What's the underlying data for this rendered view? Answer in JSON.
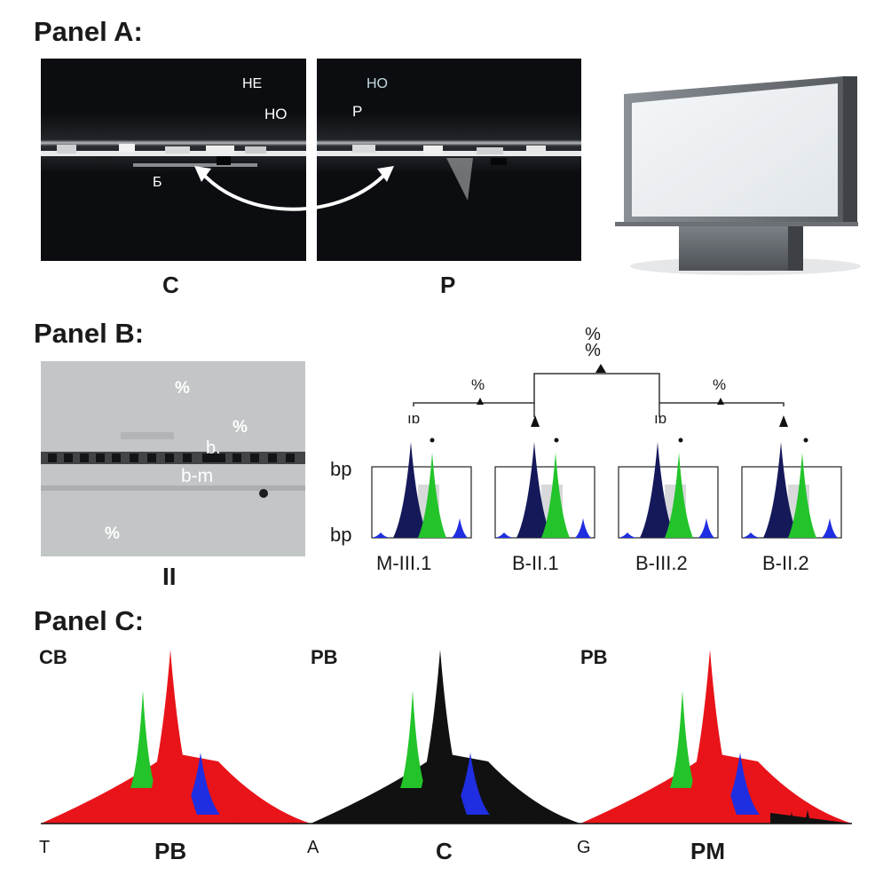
{
  "panel_a": {
    "title": "Panel A:",
    "left_image": {
      "labels": [
        "HE",
        "HO",
        "Б"
      ],
      "caption": "C"
    },
    "right_image": {
      "labels": [
        "HO",
        "P"
      ],
      "caption": "P"
    }
  },
  "panel_b": {
    "title": "Panel B:",
    "gel": {
      "labels": [
        "%",
        "%",
        "b.",
        "b-m",
        "%"
      ],
      "caption": "II"
    },
    "pedigree": {
      "top_label": "%\n%",
      "branch_labels": [
        "%",
        "%"
      ],
      "marker_labels": [
        "ıɒ",
        "ıɒ"
      ],
      "y_labels": [
        "bp",
        "bp"
      ],
      "samples": [
        "M-III.1",
        "B-II.1",
        "B-III.2",
        "B-II.2"
      ]
    }
  },
  "panel_c": {
    "title": "Panel C:",
    "traces": [
      {
        "corner_label": "CB",
        "left_letter": "T",
        "caption": "PB",
        "main_color": "#e8141a"
      },
      {
        "corner_label": "PB",
        "left_letter": "A",
        "caption": "C",
        "main_color": "#111111"
      },
      {
        "corner_label": "PB",
        "left_letter": "G",
        "caption": "PM",
        "main_color": "#e8141a"
      }
    ],
    "colors": {
      "red": "#e8141a",
      "green": "#22c42a",
      "blue": "#1f2ee0",
      "black": "#111111",
      "navy": "#15195a"
    }
  }
}
